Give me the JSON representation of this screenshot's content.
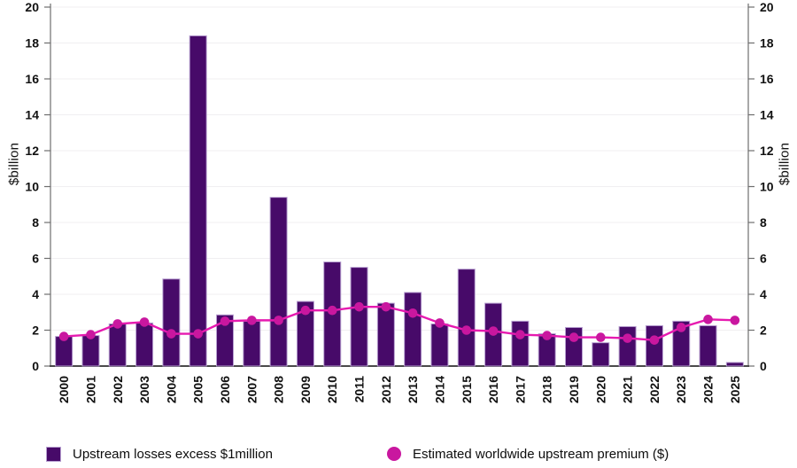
{
  "chart_data": {
    "type": "bar+line combo",
    "title": "",
    "categories": [
      "2000",
      "2001",
      "2002",
      "2003",
      "2004",
      "2005",
      "2006",
      "2007",
      "2008",
      "2009",
      "2010",
      "2011",
      "2012",
      "2013",
      "2014",
      "2015",
      "2016",
      "2017",
      "2018",
      "2019",
      "2020",
      "2021",
      "2022",
      "2023",
      "2024",
      "2025"
    ],
    "series": [
      {
        "name": "Upstream losses excess $1million",
        "type": "bar",
        "color": "#470a69",
        "edge_color": "#b79fd0",
        "values": [
          1.65,
          1.7,
          2.35,
          2.4,
          4.85,
          18.4,
          2.85,
          2.5,
          9.4,
          3.6,
          5.8,
          5.5,
          3.5,
          4.1,
          2.35,
          5.4,
          3.5,
          2.5,
          1.8,
          2.15,
          1.3,
          2.2,
          2.25,
          2.5,
          2.25,
          0.2
        ]
      },
      {
        "name": "Estimated worldwide upstream premium ($)",
        "type": "line",
        "color": "#e61ab0",
        "marker_color": "#c9179f",
        "values": [
          1.65,
          1.75,
          2.35,
          2.45,
          1.8,
          1.8,
          2.5,
          2.55,
          2.55,
          3.1,
          3.1,
          3.3,
          3.3,
          2.95,
          2.4,
          2.0,
          1.95,
          1.75,
          1.7,
          1.6,
          1.6,
          1.55,
          1.45,
          2.15,
          2.6,
          2.55
        ]
      }
    ],
    "ylabel_left": "$billion",
    "ylabel_right": "$billion",
    "ylim": [
      0,
      20
    ],
    "ytick_step": 2,
    "grid": true,
    "gridline_color": "#f0eff1",
    "axis_color": "#6e6e6e",
    "baseline_color": "#4a4a4a",
    "legend_position": "bottom"
  }
}
